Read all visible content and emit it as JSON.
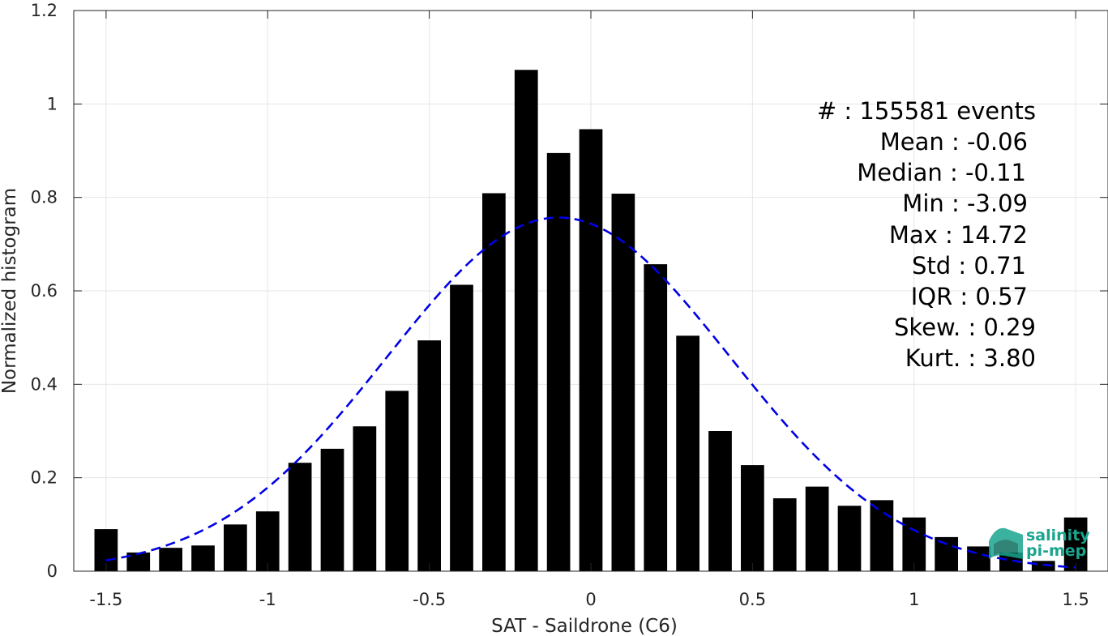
{
  "chart_data": {
    "type": "bar",
    "xlabel": "SAT - Saildrone (C6)",
    "ylabel": "Normalized histogram",
    "xlim": [
      -1.6,
      1.6
    ],
    "ylim": [
      0,
      1.2
    ],
    "grid": true,
    "x_ticks": [
      -1.5,
      -1,
      -0.5,
      0,
      0.5,
      1,
      1.5
    ],
    "x_tick_labels": [
      "-1.5",
      "-1",
      "-0.5",
      "0",
      "0.5",
      "1",
      "1.5"
    ],
    "y_ticks": [
      0,
      0.2,
      0.4,
      0.6,
      0.8,
      1,
      1.2
    ],
    "y_tick_labels": [
      "0",
      "0.2",
      "0.4",
      "0.6",
      "0.8",
      "1",
      "1.2"
    ],
    "bar_color": "#000000",
    "bin_centers": [
      -1.5,
      -1.4,
      -1.3,
      -1.2,
      -1.1,
      -1.0,
      -0.9,
      -0.8,
      -0.7,
      -0.6,
      -0.5,
      -0.4,
      -0.3,
      -0.2,
      -0.1,
      0.0,
      0.1,
      0.2,
      0.3,
      0.4,
      0.5,
      0.6,
      0.7,
      0.8,
      0.9,
      1.0,
      1.1,
      1.2,
      1.3,
      1.4,
      1.5
    ],
    "values": [
      0.09,
      0.04,
      0.05,
      0.055,
      0.1,
      0.128,
      0.232,
      0.262,
      0.31,
      0.386,
      0.494,
      0.613,
      0.809,
      1.073,
      0.895,
      0.946,
      0.808,
      0.657,
      0.504,
      0.3,
      0.227,
      0.156,
      0.181,
      0.14,
      0.152,
      0.115,
      0.073,
      0.053,
      0.04,
      0.022,
      0.115
    ],
    "fit_curve": {
      "type": "gaussian",
      "mean": -0.1,
      "peak": 0.757,
      "sigma": 0.53,
      "x_range": [
        -1.5,
        1.5
      ],
      "color": "#0000e6",
      "style": "dashed"
    }
  },
  "stats": {
    "events": "#  : 155581 events",
    "mean": "Mean : -0.06",
    "median": "Median : -0.11",
    "min": "Min : -3.09",
    "max": "Max : 14.72",
    "std": "Std : 0.71",
    "iqr": "IQR : 0.57",
    "skew": "Skew. : 0.29",
    "kurt": "Kurt. : 3.80"
  },
  "logo": {
    "line1": "salinity",
    "line2": "pi-mep",
    "color": "#1aa58f"
  }
}
